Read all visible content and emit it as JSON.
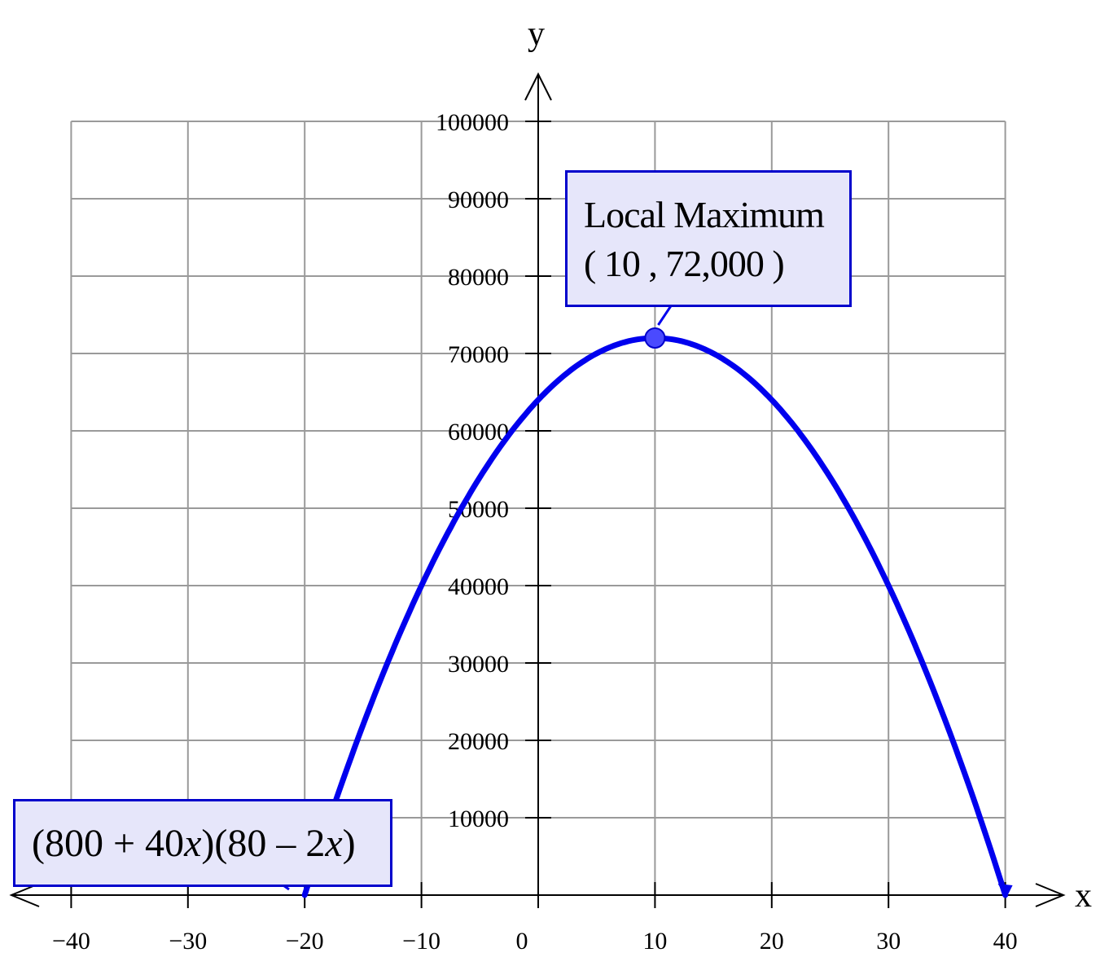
{
  "chart_data": {
    "type": "line",
    "xlabel": "x",
    "ylabel": "y",
    "xlim": [
      -40,
      40
    ],
    "ylim": [
      0,
      100000
    ],
    "x_ticks": [
      -40,
      -30,
      -20,
      -10,
      0,
      10,
      20,
      30,
      40
    ],
    "x_tick_labels": [
      "−40",
      "−30",
      "−20",
      "−10",
      "0",
      "10",
      "20",
      "30",
      "40"
    ],
    "y_ticks": [
      10000,
      20000,
      30000,
      40000,
      50000,
      60000,
      70000,
      80000,
      90000,
      100000
    ],
    "y_tick_labels": [
      "10000",
      "20000",
      "30000",
      "40000",
      "50000",
      "60000",
      "70000",
      "80000",
      "90000",
      "100000"
    ],
    "grid": true,
    "series": [
      {
        "name": "(800 + 40x)(80 − 2x)",
        "color": "#0000ee",
        "domain": [
          -20,
          40
        ],
        "expression": "(800 + 40x)(80 - 2x)",
        "x": [
          -20,
          -15,
          -10,
          -5,
          0,
          5,
          10,
          15,
          20,
          25,
          30,
          35,
          40
        ],
        "y": [
          0,
          22000,
          40000,
          54000,
          64000,
          70000,
          72000,
          70000,
          64000,
          54000,
          40000,
          22000,
          0
        ]
      }
    ],
    "annotations": [
      {
        "type": "local-maximum",
        "x": 10,
        "y": 72000,
        "line1": "Local Maximum",
        "line2": "( 10 , 72,000 )"
      }
    ],
    "function_label": {
      "parts": [
        "(800 + 40",
        "x",
        ")(80 – 2",
        "x",
        ")"
      ]
    }
  }
}
